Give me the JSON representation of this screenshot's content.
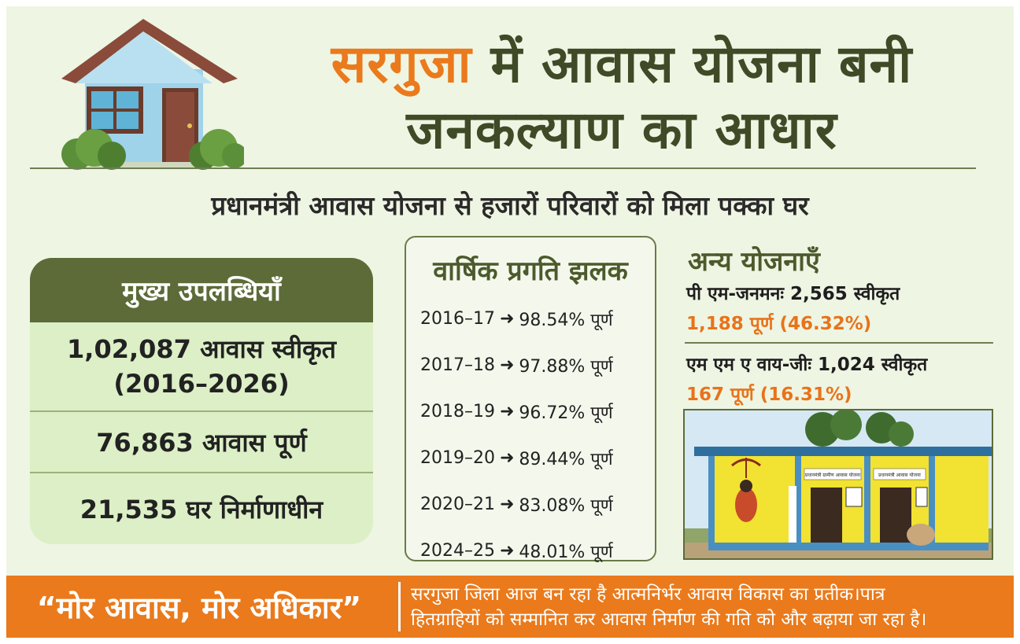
{
  "title": {
    "highlight": "सरगुजा",
    "line1_rest": " में आवास योजना बनी",
    "line2": "जनकल्याण का आधार"
  },
  "subtitle": "प्रधानमंत्री आवास योजना से हजारों परिवारों को मिला पक्का घर",
  "achievements": {
    "heading": "मुख्य उपलब्धियाँ",
    "items": [
      {
        "line1": "1,02,087 आवास स्वीकृत",
        "line2": "(2016–2026)"
      },
      {
        "line1": "76,863 आवास पूर्ण"
      },
      {
        "line1": "21,535 घर निर्माणाधीन"
      }
    ]
  },
  "annual_progress": {
    "heading": "वार्षिक प्रगति झलक",
    "arrow": "➜",
    "rows": [
      {
        "year": "2016–17",
        "value": "98.54% पूर्ण"
      },
      {
        "year": "2017–18",
        "value": "97.88% पूर्ण"
      },
      {
        "year": "2018–19",
        "value": "96.72% पूर्ण"
      },
      {
        "year": "2019–20",
        "value": "89.44% पूर्ण"
      },
      {
        "year": "2020–21",
        "value": "83.08% पूर्ण"
      },
      {
        "year": "2024–25",
        "value": "48.01% पूर्ण"
      }
    ]
  },
  "other_schemes": {
    "heading": "अन्य योजनाएँ",
    "items": [
      {
        "title": "पी एम-जनमनः 2,565 स्वीकृत",
        "progress": "1,188 पूर्ण (46.32%)"
      },
      {
        "title": "एम एम ए वाय-जीः 1,024 स्वीकृत",
        "progress": "167 पूर्ण (16.31%)"
      }
    ]
  },
  "photo_signs": [
    "प्रधानमंत्री ग्रामीण आवास योजना",
    "प्रधानमंत्री आवास योजना"
  ],
  "banner": {
    "slogan": "“मोर आवास, मोर अधिकार”",
    "line1": "सरगुजा जिला आज बन रहा है आत्मनिर्भर आवास विकास का प्रतीक।पात्र",
    "line2": "हितग्राहियों को सम्मानित कर आवास निर्माण की गति को और बढ़ाया जा रहा है।"
  },
  "colors": {
    "accent_orange": "#ea7a1b",
    "dark_olive": "#3f4a27",
    "panel_green": "#5d6b38",
    "background": "#eef5e3"
  }
}
